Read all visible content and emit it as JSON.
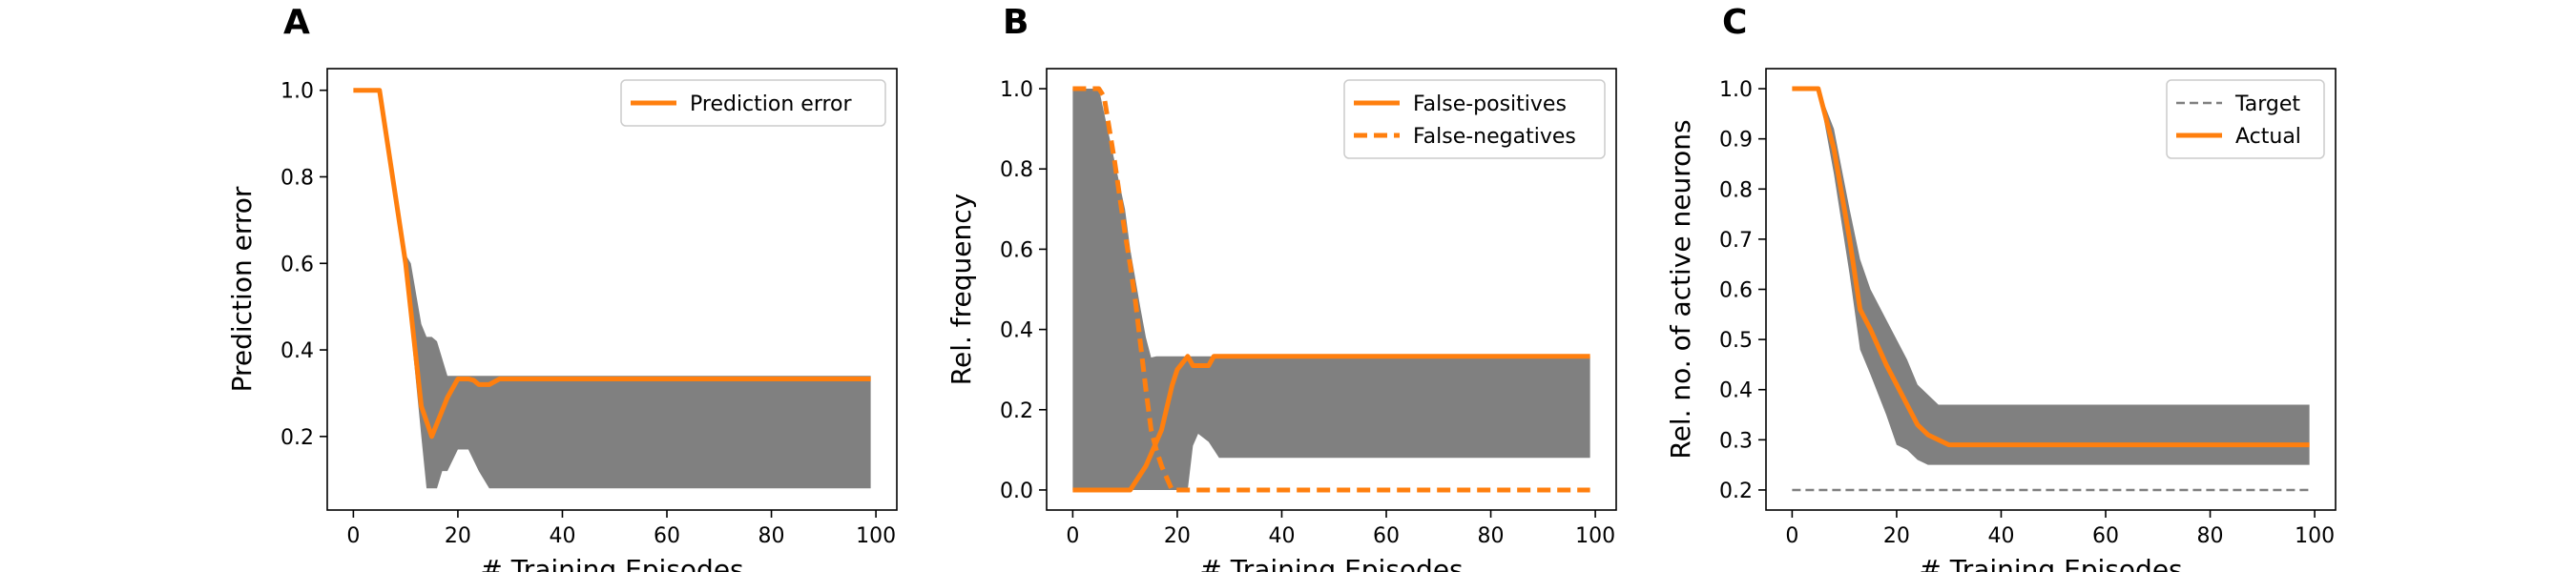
{
  "colors": {
    "line": "#ff7f0e",
    "band": "#808080",
    "target": "#808080"
  },
  "chart_data": [
    {
      "panel": "A",
      "type": "line",
      "xlabel": "# Training Episodes",
      "ylabel": "Prediction error",
      "xlim": [
        -5,
        104
      ],
      "ylim": [
        0.03,
        1.05
      ],
      "xticks": [
        0,
        20,
        40,
        60,
        80,
        100
      ],
      "yticks": [
        0.2,
        0.4,
        0.6,
        0.8,
        1.0
      ],
      "ytick_labels": [
        "0.2",
        "0.4",
        "0.6",
        "0.8",
        "1.0"
      ],
      "legend": {
        "position": "top-right",
        "entries": [
          {
            "label": "Prediction error",
            "style": "solid"
          }
        ]
      },
      "series": [
        {
          "name": "Prediction error",
          "style": "solid",
          "x": [
            0,
            5,
            10,
            13,
            15,
            18,
            20,
            22,
            23,
            24,
            26,
            28,
            30,
            40,
            60,
            80,
            99
          ],
          "y": [
            1.0,
            1.0,
            0.6,
            0.27,
            0.2,
            0.29,
            0.333,
            0.333,
            0.33,
            0.32,
            0.32,
            0.333,
            0.333,
            0.333,
            0.333,
            0.333,
            0.333
          ]
        }
      ],
      "band": {
        "x": [
          0,
          5,
          10,
          11,
          13,
          14,
          15,
          16,
          17,
          18,
          20,
          22,
          24,
          26,
          28,
          30,
          40,
          60,
          80,
          99
        ],
        "upper": [
          1.0,
          1.0,
          0.62,
          0.6,
          0.46,
          0.43,
          0.43,
          0.42,
          0.38,
          0.34,
          0.34,
          0.34,
          0.34,
          0.34,
          0.34,
          0.34,
          0.34,
          0.34,
          0.34,
          0.34
        ],
        "lower": [
          1.0,
          1.0,
          0.58,
          0.45,
          0.2,
          0.08,
          0.08,
          0.08,
          0.12,
          0.12,
          0.17,
          0.17,
          0.12,
          0.08,
          0.08,
          0.08,
          0.08,
          0.08,
          0.08,
          0.08
        ]
      }
    },
    {
      "panel": "B",
      "type": "line",
      "xlabel": "# Training Episodes",
      "ylabel": "Rel. frequency",
      "xlim": [
        -5,
        104
      ],
      "ylim": [
        -0.05,
        1.05
      ],
      "xticks": [
        0,
        20,
        40,
        60,
        80,
        100
      ],
      "yticks": [
        0.0,
        0.2,
        0.4,
        0.6,
        0.8,
        1.0
      ],
      "ytick_labels": [
        "0.0",
        "0.2",
        "0.4",
        "0.6",
        "0.8",
        "1.0"
      ],
      "legend": {
        "position": "top-right",
        "entries": [
          {
            "label": "False-positives",
            "style": "solid"
          },
          {
            "label": "False-negatives",
            "style": "dashed"
          }
        ]
      },
      "series": [
        {
          "name": "False-positives",
          "style": "solid",
          "x": [
            0,
            5,
            10,
            11,
            14,
            17,
            19,
            20,
            22,
            23,
            24,
            26,
            27,
            30,
            40,
            60,
            80,
            99
          ],
          "y": [
            0.0,
            0.0,
            0.0,
            0.0,
            0.06,
            0.15,
            0.26,
            0.3,
            0.333,
            0.31,
            0.31,
            0.31,
            0.333,
            0.333,
            0.333,
            0.333,
            0.333,
            0.333
          ]
        },
        {
          "name": "False-negatives",
          "style": "dashed",
          "x": [
            0,
            5,
            6,
            8,
            10,
            11,
            12,
            13,
            14,
            15,
            16,
            17,
            18,
            19,
            20,
            22,
            30,
            40,
            60,
            80,
            99
          ],
          "y": [
            1.0,
            1.0,
            0.98,
            0.82,
            0.64,
            0.56,
            0.47,
            0.36,
            0.25,
            0.15,
            0.1,
            0.06,
            0.03,
            0.0,
            0.0,
            0.0,
            0.0,
            0.0,
            0.0,
            0.0,
            0.0
          ]
        }
      ],
      "band": {
        "x": [
          0,
          5,
          10,
          11,
          13,
          14,
          15,
          16,
          17,
          18,
          20,
          21,
          22,
          23,
          24,
          26,
          28,
          30,
          40,
          60,
          80,
          99
        ],
        "upper": [
          1.0,
          1.0,
          0.7,
          0.6,
          0.45,
          0.38,
          0.33,
          0.333,
          0.333,
          0.333,
          0.333,
          0.333,
          0.333,
          0.333,
          0.333,
          0.333,
          0.333,
          0.333,
          0.333,
          0.333,
          0.333,
          0.333
        ],
        "lower": [
          0.0,
          0.0,
          0.0,
          0.0,
          0.0,
          0.0,
          0.0,
          0.0,
          0.0,
          0.0,
          0.0,
          0.0,
          0.0,
          0.11,
          0.14,
          0.12,
          0.08,
          0.08,
          0.08,
          0.08,
          0.08,
          0.08
        ]
      }
    },
    {
      "panel": "C",
      "type": "line",
      "xlabel": "# Training Episodes",
      "ylabel": "Rel. no. of active neurons",
      "xlim": [
        -5,
        104
      ],
      "ylim": [
        0.16,
        1.04
      ],
      "xticks": [
        0,
        20,
        40,
        60,
        80,
        100
      ],
      "yticks": [
        0.2,
        0.3,
        0.4,
        0.5,
        0.6,
        0.7,
        0.8,
        0.9,
        1.0
      ],
      "ytick_labels": [
        "0.2",
        "0.3",
        "0.4",
        "0.5",
        "0.6",
        "0.7",
        "0.8",
        "0.9",
        "1.0"
      ],
      "legend": {
        "position": "top-right",
        "entries": [
          {
            "label": "Target",
            "style": "target"
          },
          {
            "label": "Actual",
            "style": "solid"
          }
        ]
      },
      "series": [
        {
          "name": "Target",
          "style": "target",
          "x": [
            0,
            99
          ],
          "y": [
            0.2,
            0.2
          ]
        },
        {
          "name": "Actual",
          "style": "solid",
          "x": [
            0,
            5,
            8,
            11,
            13,
            15,
            18,
            20,
            22,
            24,
            26,
            28,
            30,
            40,
            60,
            80,
            99
          ],
          "y": [
            1.0,
            1.0,
            0.88,
            0.7,
            0.56,
            0.52,
            0.45,
            0.41,
            0.37,
            0.33,
            0.31,
            0.3,
            0.29,
            0.29,
            0.29,
            0.29,
            0.29
          ]
        }
      ],
      "band": {
        "x": [
          0,
          5,
          8,
          11,
          13,
          15,
          18,
          20,
          22,
          24,
          26,
          28,
          30,
          40,
          60,
          80,
          99
        ],
        "upper": [
          1.0,
          1.0,
          0.92,
          0.76,
          0.66,
          0.6,
          0.54,
          0.5,
          0.46,
          0.41,
          0.39,
          0.37,
          0.37,
          0.37,
          0.37,
          0.37,
          0.37
        ],
        "lower": [
          1.0,
          1.0,
          0.83,
          0.63,
          0.48,
          0.43,
          0.35,
          0.29,
          0.28,
          0.26,
          0.25,
          0.25,
          0.25,
          0.25,
          0.25,
          0.25,
          0.25
        ]
      }
    }
  ]
}
